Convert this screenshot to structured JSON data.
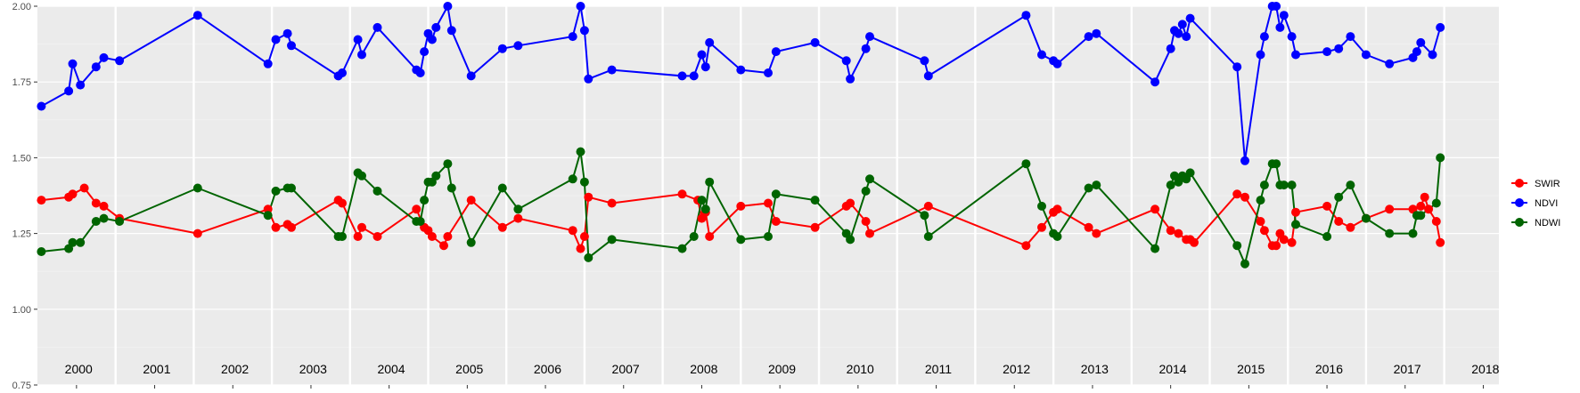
{
  "chart_data": {
    "type": "line",
    "title": "",
    "xlabel": "",
    "ylabel": "",
    "xlim": [
      2000.0,
      2018.7
    ],
    "ylim": [
      0.75,
      2.0
    ],
    "y_ticks": [
      "0.75",
      "1.00",
      "1.25",
      "1.50",
      "1.75",
      "2.00"
    ],
    "year_labels": [
      "2000",
      "2001",
      "2002",
      "2003",
      "2004",
      "2005",
      "2006",
      "2007",
      "2008",
      "2009",
      "2010",
      "2011",
      "2012",
      "2013",
      "2014",
      "2015",
      "2016",
      "2017",
      "2018"
    ],
    "grid": true,
    "legend_position": "right",
    "series": [
      {
        "name": "SWIR",
        "color": "#ff0000",
        "points": [
          [
            2000.05,
            1.36
          ],
          [
            2000.4,
            1.37
          ],
          [
            2000.45,
            1.38
          ],
          [
            2000.6,
            1.4
          ],
          [
            2000.75,
            1.35
          ],
          [
            2000.85,
            1.34
          ],
          [
            2001.05,
            1.3
          ],
          [
            2002.05,
            1.25
          ],
          [
            2002.95,
            1.33
          ],
          [
            2003.05,
            1.27
          ],
          [
            2003.2,
            1.28
          ],
          [
            2003.25,
            1.27
          ],
          [
            2003.85,
            1.36
          ],
          [
            2003.9,
            1.35
          ],
          [
            2004.1,
            1.24
          ],
          [
            2004.15,
            1.27
          ],
          [
            2004.35,
            1.24
          ],
          [
            2004.85,
            1.33
          ],
          [
            2004.95,
            1.27
          ],
          [
            2005.0,
            1.26
          ],
          [
            2005.05,
            1.24
          ],
          [
            2005.2,
            1.21
          ],
          [
            2005.25,
            1.24
          ],
          [
            2005.55,
            1.36
          ],
          [
            2005.95,
            1.27
          ],
          [
            2006.15,
            1.3
          ],
          [
            2006.85,
            1.26
          ],
          [
            2006.95,
            1.2
          ],
          [
            2007.0,
            1.24
          ],
          [
            2007.05,
            1.37
          ],
          [
            2007.35,
            1.35
          ],
          [
            2008.25,
            1.38
          ],
          [
            2008.45,
            1.36
          ],
          [
            2008.5,
            1.3
          ],
          [
            2008.55,
            1.32
          ],
          [
            2008.6,
            1.24
          ],
          [
            2009.0,
            1.34
          ],
          [
            2009.35,
            1.35
          ],
          [
            2009.45,
            1.29
          ],
          [
            2009.95,
            1.27
          ],
          [
            2010.35,
            1.34
          ],
          [
            2010.4,
            1.35
          ],
          [
            2010.6,
            1.29
          ],
          [
            2010.65,
            1.25
          ],
          [
            2011.4,
            1.34
          ],
          [
            2012.65,
            1.21
          ],
          [
            2012.85,
            1.27
          ],
          [
            2013.0,
            1.32
          ],
          [
            2013.05,
            1.33
          ],
          [
            2013.45,
            1.27
          ],
          [
            2013.55,
            1.25
          ],
          [
            2014.3,
            1.33
          ],
          [
            2014.5,
            1.26
          ],
          [
            2014.6,
            1.25
          ],
          [
            2014.7,
            1.23
          ],
          [
            2014.75,
            1.23
          ],
          [
            2014.8,
            1.22
          ],
          [
            2015.35,
            1.38
          ],
          [
            2015.45,
            1.37
          ],
          [
            2015.65,
            1.29
          ],
          [
            2015.7,
            1.26
          ],
          [
            2015.8,
            1.21
          ],
          [
            2015.85,
            1.21
          ],
          [
            2015.9,
            1.25
          ],
          [
            2015.95,
            1.23
          ],
          [
            2016.05,
            1.22
          ],
          [
            2016.1,
            1.32
          ],
          [
            2016.5,
            1.34
          ],
          [
            2016.65,
            1.29
          ],
          [
            2016.8,
            1.27
          ],
          [
            2017.0,
            1.3
          ],
          [
            2017.3,
            1.33
          ],
          [
            2017.6,
            1.33
          ],
          [
            2017.7,
            1.34
          ],
          [
            2017.75,
            1.37
          ],
          [
            2017.8,
            1.33
          ],
          [
            2017.9,
            1.29
          ],
          [
            2017.95,
            1.22
          ]
        ]
      },
      {
        "name": "NDVI",
        "color": "#0000ff",
        "points": [
          [
            2000.05,
            1.67
          ],
          [
            2000.4,
            1.72
          ],
          [
            2000.45,
            1.81
          ],
          [
            2000.55,
            1.74
          ],
          [
            2000.75,
            1.8
          ],
          [
            2000.85,
            1.83
          ],
          [
            2001.05,
            1.82
          ],
          [
            2002.05,
            1.97
          ],
          [
            2002.95,
            1.81
          ],
          [
            2003.05,
            1.89
          ],
          [
            2003.2,
            1.91
          ],
          [
            2003.25,
            1.87
          ],
          [
            2003.85,
            1.77
          ],
          [
            2003.9,
            1.78
          ],
          [
            2004.1,
            1.89
          ],
          [
            2004.15,
            1.84
          ],
          [
            2004.35,
            1.93
          ],
          [
            2004.85,
            1.79
          ],
          [
            2004.9,
            1.78
          ],
          [
            2004.95,
            1.85
          ],
          [
            2005.0,
            1.91
          ],
          [
            2005.05,
            1.89
          ],
          [
            2005.1,
            1.93
          ],
          [
            2005.25,
            2.0
          ],
          [
            2005.3,
            1.92
          ],
          [
            2005.55,
            1.77
          ],
          [
            2005.95,
            1.86
          ],
          [
            2006.15,
            1.87
          ],
          [
            2006.85,
            1.9
          ],
          [
            2006.95,
            2.0
          ],
          [
            2007.0,
            1.92
          ],
          [
            2007.05,
            1.76
          ],
          [
            2007.35,
            1.79
          ],
          [
            2008.25,
            1.77
          ],
          [
            2008.4,
            1.77
          ],
          [
            2008.5,
            1.84
          ],
          [
            2008.55,
            1.8
          ],
          [
            2008.6,
            1.88
          ],
          [
            2009.0,
            1.79
          ],
          [
            2009.35,
            1.78
          ],
          [
            2009.45,
            1.85
          ],
          [
            2009.95,
            1.88
          ],
          [
            2010.35,
            1.82
          ],
          [
            2010.4,
            1.76
          ],
          [
            2010.6,
            1.86
          ],
          [
            2010.65,
            1.9
          ],
          [
            2011.35,
            1.82
          ],
          [
            2011.4,
            1.77
          ],
          [
            2012.65,
            1.97
          ],
          [
            2012.85,
            1.84
          ],
          [
            2013.0,
            1.82
          ],
          [
            2013.05,
            1.81
          ],
          [
            2013.45,
            1.9
          ],
          [
            2013.55,
            1.91
          ],
          [
            2014.3,
            1.75
          ],
          [
            2014.5,
            1.86
          ],
          [
            2014.55,
            1.92
          ],
          [
            2014.6,
            1.91
          ],
          [
            2014.65,
            1.94
          ],
          [
            2014.7,
            1.9
          ],
          [
            2014.75,
            1.96
          ],
          [
            2015.35,
            1.8
          ],
          [
            2015.45,
            1.49
          ],
          [
            2015.65,
            1.84
          ],
          [
            2015.7,
            1.9
          ],
          [
            2015.8,
            2.0
          ],
          [
            2015.85,
            2.0
          ],
          [
            2015.9,
            1.93
          ],
          [
            2015.95,
            1.97
          ],
          [
            2016.05,
            1.9
          ],
          [
            2016.1,
            1.84
          ],
          [
            2016.5,
            1.85
          ],
          [
            2016.65,
            1.86
          ],
          [
            2016.8,
            1.9
          ],
          [
            2017.0,
            1.84
          ],
          [
            2017.3,
            1.81
          ],
          [
            2017.6,
            1.83
          ],
          [
            2017.65,
            1.85
          ],
          [
            2017.7,
            1.88
          ],
          [
            2017.85,
            1.84
          ],
          [
            2017.95,
            1.93
          ]
        ]
      },
      {
        "name": "NDWI",
        "color": "#006400",
        "points": [
          [
            2000.05,
            1.19
          ],
          [
            2000.4,
            1.2
          ],
          [
            2000.45,
            1.22
          ],
          [
            2000.55,
            1.22
          ],
          [
            2000.75,
            1.29
          ],
          [
            2000.85,
            1.3
          ],
          [
            2001.05,
            1.29
          ],
          [
            2002.05,
            1.4
          ],
          [
            2002.95,
            1.31
          ],
          [
            2003.05,
            1.39
          ],
          [
            2003.2,
            1.4
          ],
          [
            2003.25,
            1.4
          ],
          [
            2003.85,
            1.24
          ],
          [
            2003.9,
            1.24
          ],
          [
            2004.1,
            1.45
          ],
          [
            2004.15,
            1.44
          ],
          [
            2004.35,
            1.39
          ],
          [
            2004.85,
            1.29
          ],
          [
            2004.9,
            1.29
          ],
          [
            2004.95,
            1.36
          ],
          [
            2005.0,
            1.42
          ],
          [
            2005.05,
            1.42
          ],
          [
            2005.1,
            1.44
          ],
          [
            2005.25,
            1.48
          ],
          [
            2005.3,
            1.4
          ],
          [
            2005.55,
            1.22
          ],
          [
            2005.95,
            1.4
          ],
          [
            2006.15,
            1.33
          ],
          [
            2006.85,
            1.43
          ],
          [
            2006.95,
            1.52
          ],
          [
            2007.0,
            1.42
          ],
          [
            2007.05,
            1.17
          ],
          [
            2007.35,
            1.23
          ],
          [
            2008.25,
            1.2
          ],
          [
            2008.4,
            1.24
          ],
          [
            2008.5,
            1.36
          ],
          [
            2008.55,
            1.33
          ],
          [
            2008.6,
            1.42
          ],
          [
            2009.0,
            1.23
          ],
          [
            2009.35,
            1.24
          ],
          [
            2009.45,
            1.38
          ],
          [
            2009.95,
            1.36
          ],
          [
            2010.35,
            1.25
          ],
          [
            2010.4,
            1.23
          ],
          [
            2010.6,
            1.39
          ],
          [
            2010.65,
            1.43
          ],
          [
            2011.35,
            1.31
          ],
          [
            2011.4,
            1.24
          ],
          [
            2012.65,
            1.48
          ],
          [
            2012.85,
            1.34
          ],
          [
            2013.0,
            1.25
          ],
          [
            2013.05,
            1.24
          ],
          [
            2013.45,
            1.4
          ],
          [
            2013.55,
            1.41
          ],
          [
            2014.3,
            1.2
          ],
          [
            2014.5,
            1.41
          ],
          [
            2014.55,
            1.44
          ],
          [
            2014.6,
            1.42
          ],
          [
            2014.65,
            1.44
          ],
          [
            2014.7,
            1.43
          ],
          [
            2014.75,
            1.45
          ],
          [
            2015.35,
            1.21
          ],
          [
            2015.45,
            1.15
          ],
          [
            2015.65,
            1.36
          ],
          [
            2015.7,
            1.41
          ],
          [
            2015.8,
            1.48
          ],
          [
            2015.85,
            1.48
          ],
          [
            2015.9,
            1.41
          ],
          [
            2015.95,
            1.41
          ],
          [
            2016.05,
            1.41
          ],
          [
            2016.1,
            1.28
          ],
          [
            2016.5,
            1.24
          ],
          [
            2016.65,
            1.37
          ],
          [
            2016.8,
            1.41
          ],
          [
            2017.0,
            1.3
          ],
          [
            2017.3,
            1.25
          ],
          [
            2017.6,
            1.25
          ],
          [
            2017.65,
            1.31
          ],
          [
            2017.7,
            1.31
          ],
          [
            2017.9,
            1.35
          ],
          [
            2017.95,
            1.5
          ]
        ]
      }
    ]
  }
}
